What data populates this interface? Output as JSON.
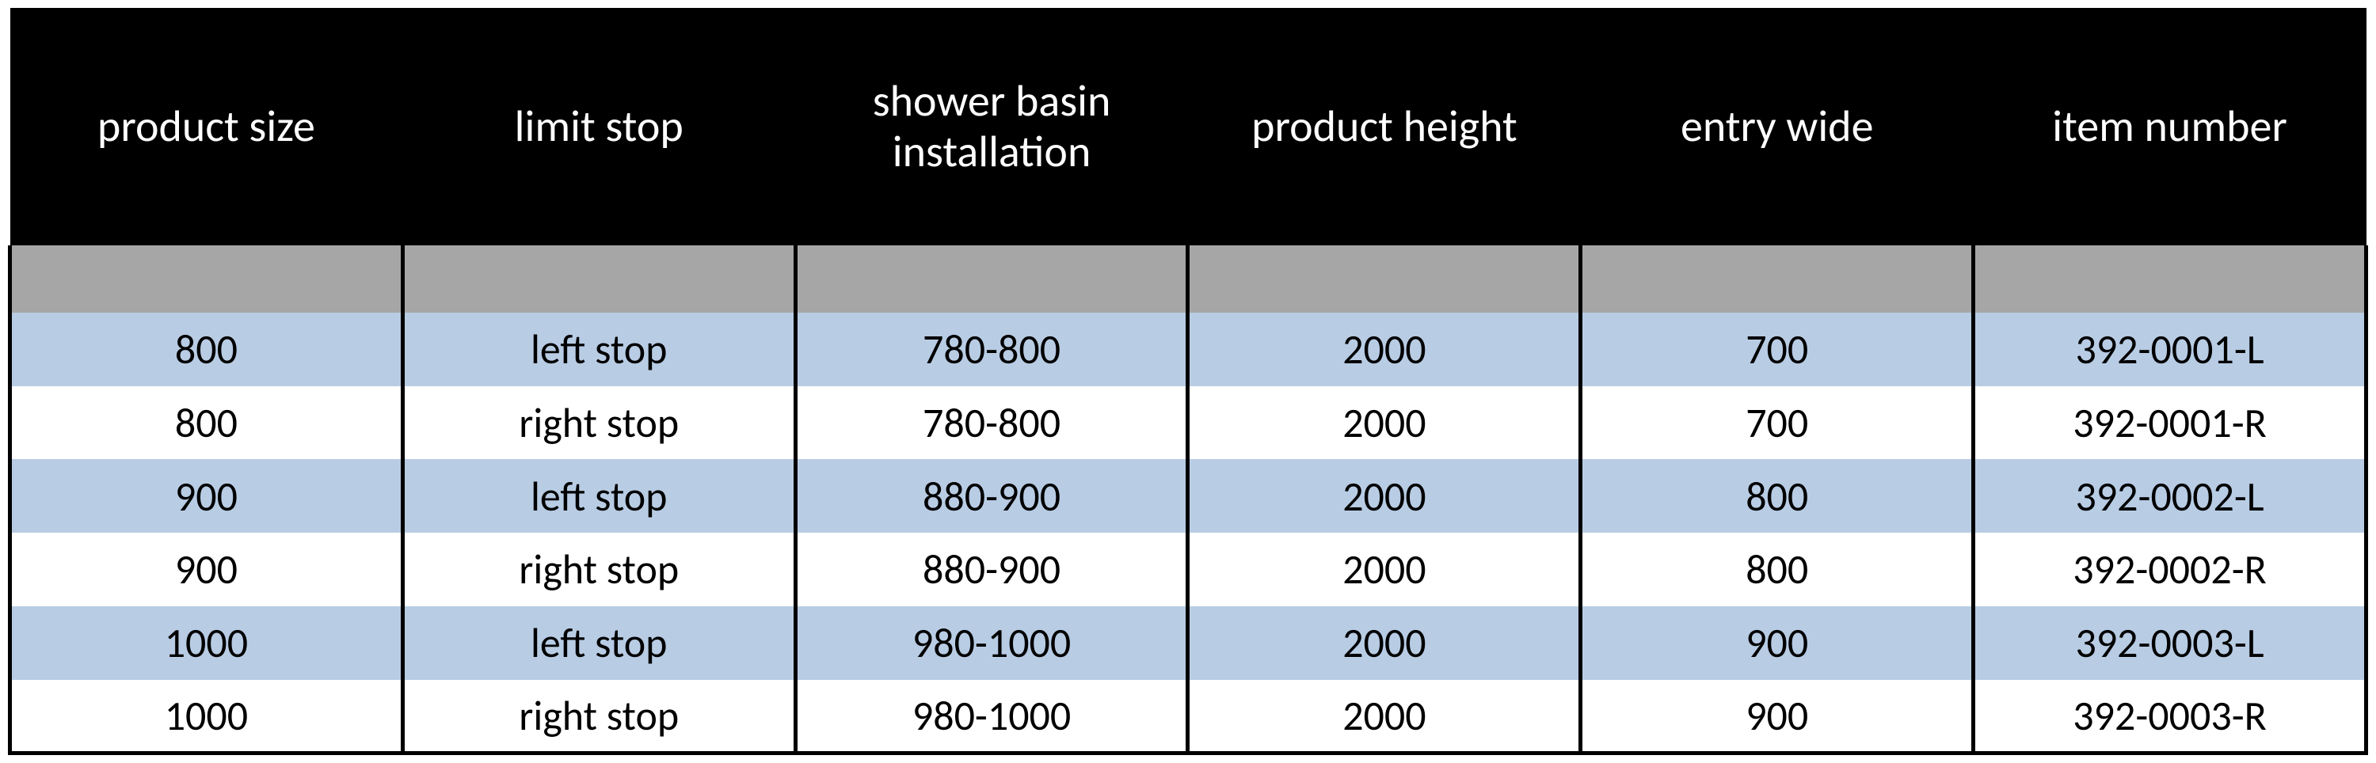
{
  "table": {
    "type": "table",
    "background_color": "#ffffff",
    "header": {
      "bg_color": "#000000",
      "text_color": "#ffffff",
      "fontsize": 56,
      "columns": [
        "product size",
        "limit stop",
        "shower basin\ninstallation",
        "product height",
        "entry wide",
        "item number"
      ]
    },
    "spacer_row": {
      "bg_color": "#a6a6a6"
    },
    "body": {
      "fontsize": 52,
      "text_color": "#000000",
      "border_color": "#000000",
      "border_width": 5,
      "band_colors": [
        "#b8cce4",
        "#ffffff"
      ],
      "rows": [
        [
          "800",
          "left stop",
          "780-800",
          "2000",
          "700",
          "392-0001-L"
        ],
        [
          "800",
          "right stop",
          "780-800",
          "2000",
          "700",
          "392-0001-R"
        ],
        [
          "900",
          "left stop",
          "880-900",
          "2000",
          "800",
          "392-0002-L"
        ],
        [
          "900",
          "right stop",
          "880-900",
          "2000",
          "800",
          "392-0002-R"
        ],
        [
          "1000",
          "left stop",
          "980-1000",
          "2000",
          "900",
          "392-0003-L"
        ],
        [
          "1000",
          "right stop",
          "980-1000",
          "2000",
          "900",
          "392-0003-R"
        ]
      ]
    },
    "column_widths_pct": [
      16.6,
      16.6,
      16.6,
      16.6,
      16.6,
      17.0
    ]
  }
}
